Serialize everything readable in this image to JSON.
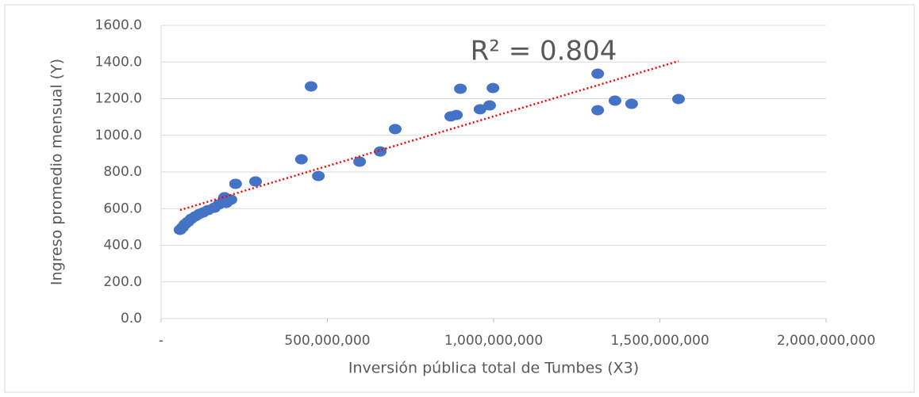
{
  "chart_data": {
    "type": "scatter",
    "xlabel": "Inversión pública total de Tumbes (X3)",
    "ylabel": "Ingreso promedio mensual (Y)",
    "annotation": "R² = 0.804",
    "color": "#4472c4",
    "x": [
      57000000,
      64000000,
      72000000,
      81000000,
      91000000,
      103000000,
      115000000,
      126000000,
      141000000,
      160000000,
      174000000,
      191000000,
      196000000,
      210000000,
      224000000,
      284000000,
      422000000,
      451000000,
      473000000,
      597000000,
      659000000,
      704000000,
      871000000,
      888000000,
      900000000,
      959000000,
      988000000,
      998000000,
      1313000000,
      1313000000,
      1365000000,
      1415000000,
      1556000000
    ],
    "values": [
      484,
      497,
      515,
      528,
      545,
      558,
      571,
      579,
      592,
      605,
      623,
      662,
      631,
      649,
      735,
      748,
      869,
      1267,
      778,
      856,
      912,
      1034,
      1103,
      1111,
      1254,
      1142,
      1163,
      1258,
      1336,
      1137,
      1189,
      1172,
      1198
    ],
    "trendline": {
      "x": [
        57000000,
        1556000000
      ],
      "values": [
        592,
        1405
      ],
      "color": "#ff0000"
    },
    "xlim": [
      0,
      2000000000
    ],
    "xticks": [
      {
        "value": 0,
        "label": "-"
      },
      {
        "value": 500000000,
        "label": "500,000,000"
      },
      {
        "value": 1000000000,
        "label": "1,000,000,000"
      },
      {
        "value": 1500000000,
        "label": "1,500,000,000"
      },
      {
        "value": 2000000000,
        "label": "2,000,000,000"
      }
    ],
    "ylim": [
      0,
      1600
    ],
    "yticks": [
      {
        "value": 0,
        "label": "0.0"
      },
      {
        "value": 200,
        "label": "200.0"
      },
      {
        "value": 400,
        "label": "400.0"
      },
      {
        "value": 600,
        "label": "600.0"
      },
      {
        "value": 800,
        "label": "800.0"
      },
      {
        "value": 1000,
        "label": "1000.0"
      },
      {
        "value": 1200,
        "label": "1200.0"
      },
      {
        "value": 1400,
        "label": "1400.0"
      },
      {
        "value": 1600,
        "label": "1600.0"
      }
    ],
    "grid": true
  }
}
